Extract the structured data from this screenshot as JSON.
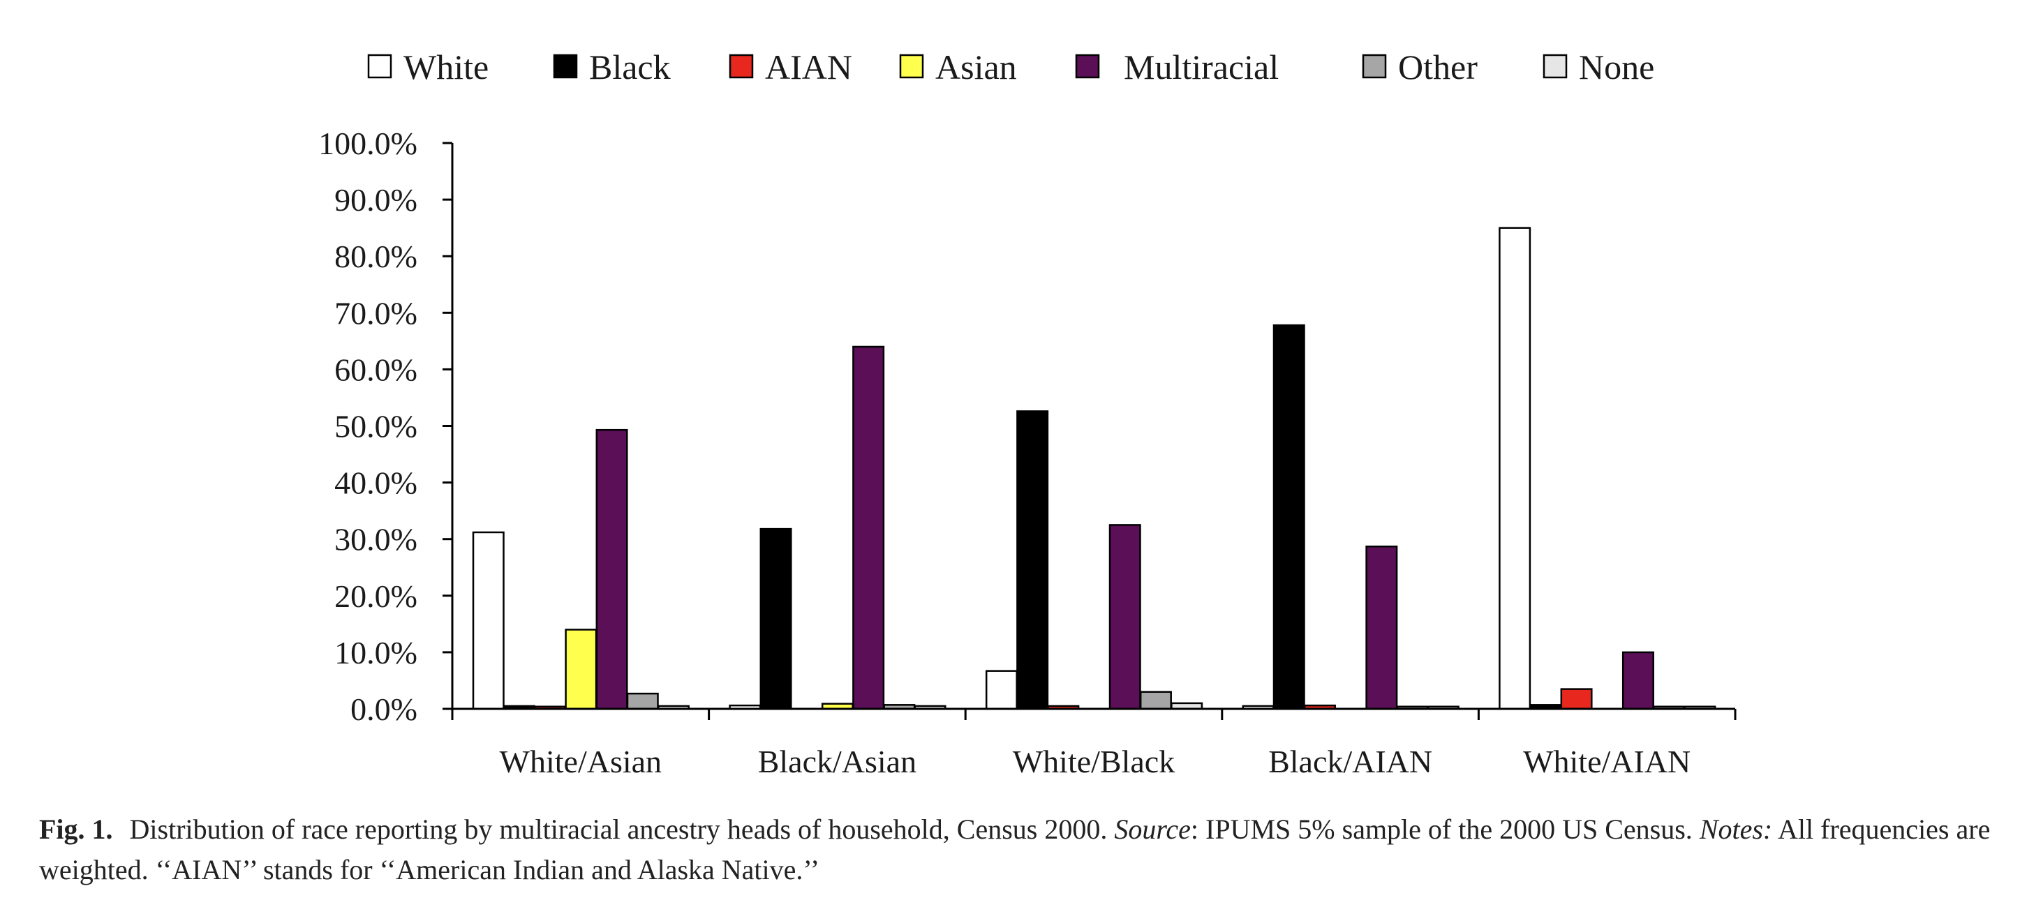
{
  "chart_data": {
    "type": "bar",
    "categories": [
      "White/Asian",
      "Black/Asian",
      "White/Black",
      "Black/AIAN",
      "White/AIAN"
    ],
    "series": [
      {
        "name": "White",
        "color": "#ffffff",
        "values": [
          31.2,
          0.6,
          6.7,
          0.5,
          85.0
        ]
      },
      {
        "name": "Black",
        "color": "#000000",
        "values": [
          0.5,
          31.8,
          52.6,
          67.8,
          0.7
        ]
      },
      {
        "name": "AIAN",
        "color": "#e8281e",
        "values": [
          0.4,
          0.0,
          0.5,
          0.6,
          3.5
        ]
      },
      {
        "name": "Asian",
        "color": "#ffff4d",
        "values": [
          14.0,
          0.9,
          0.0,
          0.0,
          0.0
        ]
      },
      {
        "name": "Multiracial",
        "color": "#5a0f57",
        "values": [
          49.3,
          64.0,
          32.5,
          28.7,
          10.0
        ]
      },
      {
        "name": "Other",
        "color": "#a6a6a6",
        "values": [
          2.7,
          0.7,
          3.0,
          0.4,
          0.4
        ]
      },
      {
        "name": "None",
        "color": "#e6e6e6",
        "values": [
          0.5,
          0.5,
          1.0,
          0.4,
          0.4
        ]
      }
    ],
    "ylim": [
      0,
      100
    ],
    "yticks": [
      "0.0%",
      "10.0%",
      "20.0%",
      "30.0%",
      "40.0%",
      "50.0%",
      "60.0%",
      "70.0%",
      "80.0%",
      "90.0%",
      "100.0%"
    ],
    "grid": false,
    "legend_position": "top"
  },
  "caption": {
    "fig_label": "Fig. 1.",
    "text_1": "Distribution of race reporting by multiracial ancestry heads of household, Census 2000.",
    "source_label": "Source",
    "text_2": ": IPUMS 5% sample of the 2000 US Census.",
    "notes_label": "Notes:",
    "text_3": "All frequencies are weighted. ‘‘AIAN’’ stands for ‘‘American Indian and Alaska Native.’’"
  }
}
